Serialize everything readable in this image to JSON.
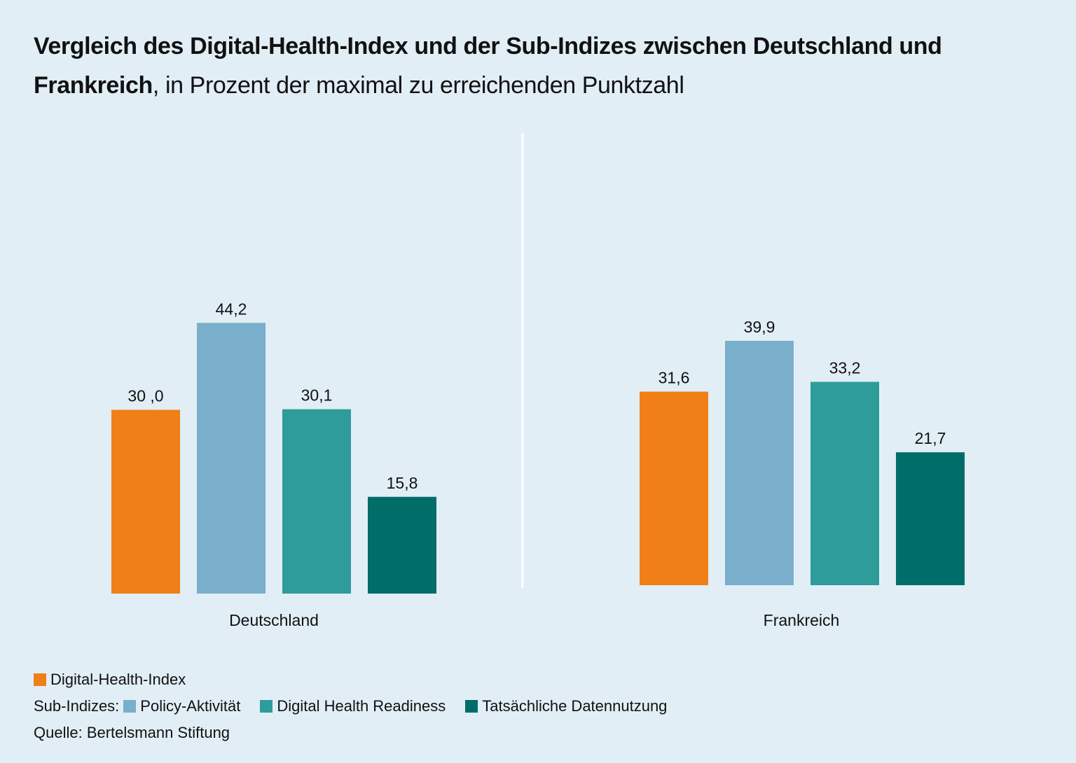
{
  "title": {
    "bold": "Vergleich des Digital-Health-Index und der Sub-Indizes zwischen Deutschland und Frankreich",
    "rest": ", in Prozent der maximal zu erreichenden Punktzahl"
  },
  "chart_data": {
    "type": "bar",
    "title": "Vergleich des Digital-Health-Index und der Sub-Indizes zwischen Deutschland und Frankreich, in Prozent der maximal zu erreichenden Punktzahl",
    "xlabel": "",
    "ylabel": "",
    "ylim": [
      0,
      50
    ],
    "grid": false,
    "legend_position": "bottom-left",
    "categories": [
      "Deutschland",
      "Frankreich"
    ],
    "series": [
      {
        "name": "Digital-Health-Index",
        "color": "#f07f17",
        "values": [
          30.0,
          31.6
        ],
        "labels": [
          "30 ,0",
          "31,6"
        ]
      },
      {
        "name": "Policy-Aktivität",
        "color": "#79afca",
        "values": [
          44.2,
          39.9
        ],
        "labels": [
          "44,2",
          "39,9"
        ]
      },
      {
        "name": "Digital Health Readiness",
        "color": "#2e9c9a",
        "values": [
          30.1,
          33.2
        ],
        "labels": [
          "30,1",
          "33,2"
        ]
      },
      {
        "name": "Tatsächliche Datennutzung",
        "color": "#006d68",
        "values": [
          15.8,
          21.7
        ],
        "labels": [
          "15,8",
          "21,7"
        ]
      }
    ]
  },
  "legend": {
    "main_label": "Digital-Health-Index",
    "sub_prefix": "Sub-Indizes:",
    "sub_items": [
      "Policy-Aktivität",
      "Digital Health Readiness",
      "Tatsächliche Datennutzung"
    ]
  },
  "source": "Quelle: Bertelsmann Stiftung",
  "colors": {
    "background": "#e1eef6",
    "divider": "#ffffff"
  }
}
